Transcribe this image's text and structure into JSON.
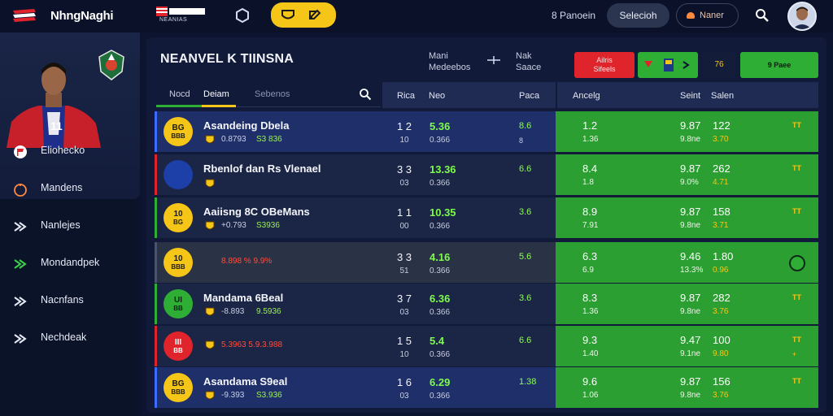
{
  "header": {
    "brand": "NhngNaghi",
    "flag_text": "NEANIAS",
    "top_link": "8 Panoein",
    "dark_button": "Selecioh",
    "outline_button": "Naner",
    "colors": {
      "accent_yellow": "#f5c518",
      "accent_green": "#2fae35",
      "accent_red": "#e0242b",
      "bg": "#0c1430"
    }
  },
  "sidebar": {
    "items": [
      {
        "label": "Eliohecko",
        "icon": "flag-icon"
      },
      {
        "label": "Mandens",
        "icon": "ball-icon"
      },
      {
        "label": "Nanlejes",
        "icon": "chevrons-icon"
      },
      {
        "label": "Mondandpek",
        "icon": "chevrons-green-icon"
      },
      {
        "label": "Nacnfans",
        "icon": "chevrons-icon"
      },
      {
        "label": "Nechdeak",
        "icon": "chevrons-icon"
      }
    ]
  },
  "main": {
    "title": "NEANVEL K TIINSNA",
    "head1": [
      "Mani",
      "Medeebos"
    ],
    "head2": [
      "Nak",
      "Saace"
    ],
    "btn_red": [
      "Ailris",
      "Sifeels"
    ],
    "btn_dark": "76",
    "btn_green2": "9 Paee",
    "tabs": [
      "Nocd",
      "Deiam",
      "Sebenos"
    ],
    "columns": [
      "Rica",
      "Neo",
      "Paca",
      "Ancelg",
      "Seint",
      "Salen"
    ]
  },
  "rows": [
    {
      "team": "Asandeing Dbela",
      "badge": [
        "BG",
        "BBB"
      ],
      "sub1": "0.8793",
      "sub2": "S3 836",
      "num_a": "1 2",
      "num_b": "10",
      "odd_a": "5.36",
      "odd_b": "0.366",
      "sm_a": "8.6",
      "sm_b": "8",
      "r1a": "1.2",
      "r1b": "1.36",
      "r2a": "9.87",
      "r2b": "9.8ne",
      "r3a": "122",
      "r3b": "3.70",
      "arrow": "TT",
      "arrow2": "",
      "style": "blue"
    },
    {
      "team": "Rbenlof dan Rs Vlenael",
      "badge": [
        "",
        ""
      ],
      "sub1": "",
      "sub2": "",
      "num_a": "3 3",
      "num_b": "03",
      "odd_a": "13.36",
      "odd_b": "0.366",
      "sm_a": "6.6",
      "sm_b": "",
      "r1a": "8.4",
      "r1b": "1.8",
      "r2a": "9.87",
      "r2b": "9.0%",
      "r3a": "262",
      "r3b": "4.71",
      "arrow": "TT",
      "arrow2": "",
      "style": "dark"
    },
    {
      "team": "Aaiisng 8C OBeMans",
      "badge": [
        "10",
        "BG"
      ],
      "sub1": "+0.793",
      "sub2": "S3936",
      "num_a": "1 1",
      "num_b": "00",
      "odd_a": "10.35",
      "odd_b": "0.366",
      "sm_a": "3.6",
      "sm_b": "",
      "r1a": "8.9",
      "r1b": "7.91",
      "r2a": "9.87",
      "r2b": "9.8ne",
      "r3a": "158",
      "r3b": "3.71",
      "arrow": "TT",
      "arrow2": "",
      "style": "dark"
    },
    {
      "team": "",
      "badge": [
        "10",
        "BBB"
      ],
      "sub1": "8.898 % 9.9%",
      "sub2": "",
      "num_a": "3 3",
      "num_b": "51",
      "odd_a": "4.16",
      "odd_b": "0.366",
      "sm_a": "5.6",
      "sm_b": "",
      "r1a": "6.3",
      "r1b": "6.9",
      "r2a": "9.46",
      "r2b": "13.3%",
      "r3a": "1.80",
      "r3b": "0.96",
      "arrow": "",
      "arrow2": "",
      "style": "gray"
    },
    {
      "team": "Mandama 6Beal",
      "badge": [
        "UI",
        "BB"
      ],
      "sub1": "-8.893",
      "sub2": "9.5936",
      "num_a": "3 7",
      "num_b": "03",
      "odd_a": "6.36",
      "odd_b": "0.366",
      "sm_a": "3.6",
      "sm_b": "",
      "r1a": "8.3",
      "r1b": "1.36",
      "r2a": "9.87",
      "r2b": "9.8ne",
      "r3a": "282",
      "r3b": "3.76",
      "arrow": "TT",
      "arrow2": "",
      "style": "dark"
    },
    {
      "team": "",
      "badge": [
        "III",
        "BB"
      ],
      "sub1": "5.3963 5.9.3.988",
      "sub2": "",
      "num_a": "1 5",
      "num_b": "10",
      "odd_a": "5.4",
      "odd_b": "0.366",
      "sm_a": "6.6",
      "sm_b": "",
      "r1a": "9.3",
      "r1b": "1.40",
      "r2a": "9.47",
      "r2b": "9.1ne",
      "r3a": "100",
      "r3b": "9.80",
      "arrow": "TT",
      "arrow2": "+",
      "style": "dark"
    },
    {
      "team": "Asandama S9eal",
      "badge": [
        "BG",
        "BBB"
      ],
      "sub1": "-9.393",
      "sub2": "S3.936",
      "num_a": "1 6",
      "num_b": "03",
      "odd_a": "6.29",
      "odd_b": "0.366",
      "sm_a": "1.38",
      "sm_b": "",
      "r1a": "9.6",
      "r1b": "1.06",
      "r2a": "9.87",
      "r2b": "9.8ne",
      "r3a": "156",
      "r3b": "3.76",
      "arrow": "TT",
      "arrow2": "",
      "style": "blue"
    }
  ]
}
